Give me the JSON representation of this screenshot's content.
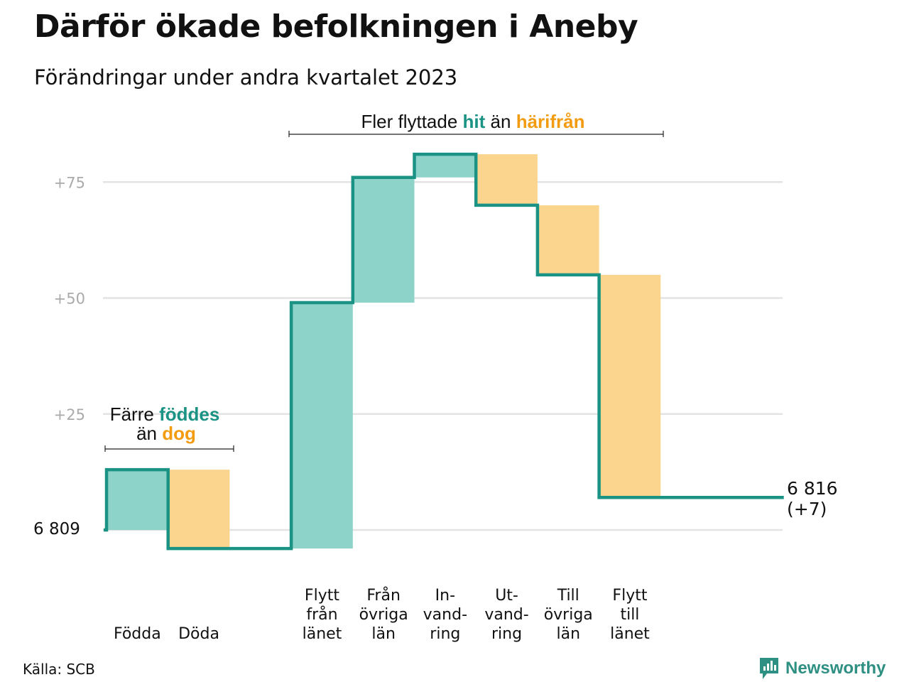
{
  "title": "Därför ökade befolkningen i Aneby",
  "subtitle": "Förändringar under andra kvartalet 2023",
  "source": "Källa: SCB",
  "brand": "Newsworthy",
  "colors": {
    "increase": "#8dd3ca",
    "decrease": "#fbd58e",
    "line": "#1a9384",
    "grid": "#e3e3e3",
    "teal_text": "#1a9384",
    "orange_text": "#f39c12"
  },
  "annotations": {
    "left": {
      "line1_prefix": "Färre",
      "line1_highlight": "föddes",
      "line2_prefix": "än",
      "line2_highlight": "dog"
    },
    "top": {
      "prefix": "Fler flyttade",
      "highlight1": "hit",
      "middle": "än",
      "highlight2": "härifrån"
    }
  },
  "chart_data": {
    "type": "waterfall",
    "baseline_value": 6809,
    "baseline_label": "6  809",
    "end_label_value": "6 816",
    "end_label_change": "(+7)",
    "y_ticks": [
      {
        "value": 6834,
        "label": "+25"
      },
      {
        "value": 6859,
        "label": "+50"
      },
      {
        "value": 6884,
        "label": "+75"
      }
    ],
    "ylim": [
      6805,
      6891
    ],
    "steps": [
      {
        "label": [
          "Födda"
        ],
        "change": 13
      },
      {
        "label": [
          "Döda"
        ],
        "change": -17
      },
      {
        "label": [],
        "change": 0
      },
      {
        "label": [
          "Flytt",
          "från",
          "länet"
        ],
        "change": 53
      },
      {
        "label": [
          "Från",
          "övriga",
          "län"
        ],
        "change": 27
      },
      {
        "label": [
          "In-",
          "vand-",
          "ring"
        ],
        "change": 5
      },
      {
        "label": [
          "Ut-",
          "vand-",
          "ring"
        ],
        "change": -11
      },
      {
        "label": [
          "Till",
          "övriga",
          "län"
        ],
        "change": -15
      },
      {
        "label": [
          "Flytt",
          "till",
          "länet"
        ],
        "change": -48
      },
      {
        "label": [],
        "change": 0
      },
      {
        "label": [],
        "change": 0
      }
    ]
  }
}
